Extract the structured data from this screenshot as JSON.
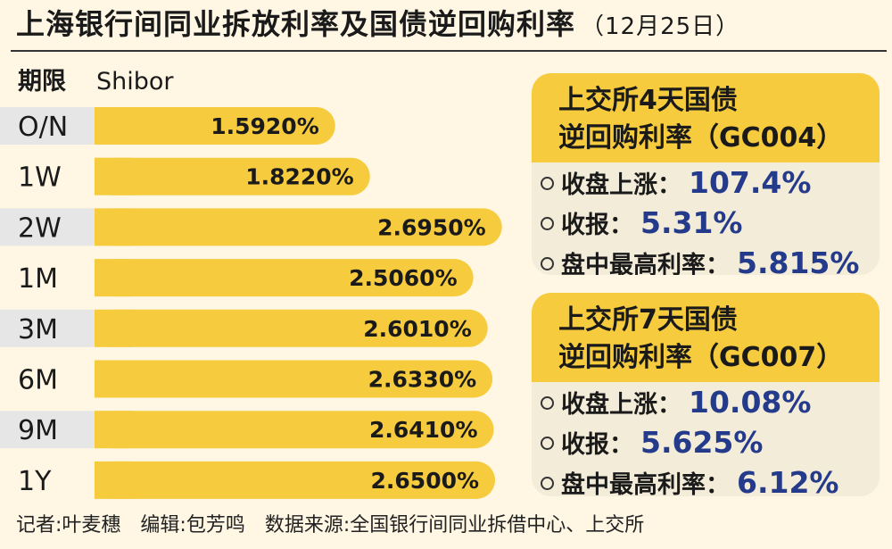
{
  "title": "上海银行间同业拆放利率及国债逆回购利率",
  "title_date": "（12月25日）",
  "column_headers": {
    "period": "期限",
    "series": "Shibor"
  },
  "colors": {
    "bar": "#f6cb3e",
    "stripe": "#e6e6e6",
    "value_text": "#243a8a"
  },
  "chart_data": {
    "type": "bar",
    "orientation": "horizontal",
    "series": [
      {
        "name": "Shibor"
      }
    ],
    "categories": [
      "O/N",
      "1W",
      "2W",
      "1M",
      "3M",
      "6M",
      "9M",
      "1Y"
    ],
    "values": [
      1.592,
      1.822,
      2.695,
      2.506,
      2.601,
      2.633,
      2.641,
      2.65
    ],
    "value_labels": [
      "1.5920%",
      "1.8220%",
      "2.6950%",
      "2.5060%",
      "2.6010%",
      "2.6330%",
      "2.6410%",
      "2.6500%"
    ],
    "xlim": [
      0,
      2.75
    ]
  },
  "panels": [
    {
      "heading_line1": "上交所4天国债",
      "heading_line2": "逆回购利率（GC004）",
      "rows": [
        {
          "label": "收盘上涨：",
          "value": "107.4%"
        },
        {
          "label": "收报：",
          "value": "5.31%"
        },
        {
          "label": "盘中最高利率：",
          "value": "5.815%"
        }
      ]
    },
    {
      "heading_line1": "上交所7天国债",
      "heading_line2": "逆回购利率（GC007）",
      "rows": [
        {
          "label": "收盘上涨：",
          "value": "10.08%"
        },
        {
          "label": "收报：",
          "value": "5.625%"
        },
        {
          "label": "盘中最高利率：",
          "value": "6.12%"
        }
      ]
    }
  ],
  "footer": "记者:叶麦穗　编辑:包芳鸣　数据来源:全国银行间同业拆借中心、上交所"
}
